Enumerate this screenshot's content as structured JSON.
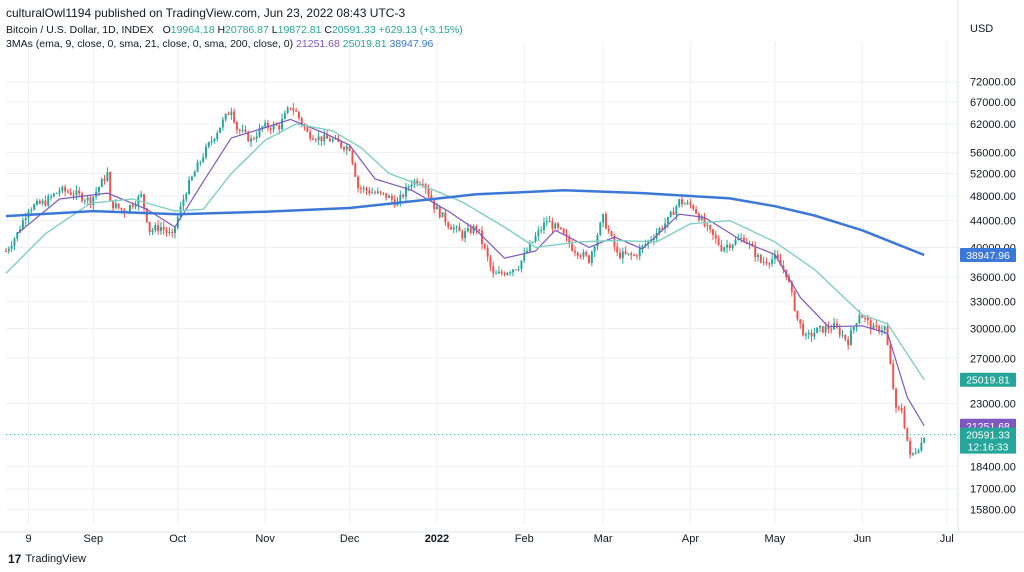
{
  "header": {
    "publish_line": "culturalOwl1194 published on TradingView.com, Jun 23, 2022 08:43 UTC-3",
    "symbol_line": "Bitcoin / U.S. Dollar, 1D, INDEX",
    "o_label": "O",
    "o_value": "19964.18",
    "h_label": "H",
    "h_value": "20786.87",
    "l_label": "L",
    "l_value": "19872.81",
    "c_label": "C",
    "c_value": "20591.33",
    "change": "+629.13 (+3.15%)",
    "ma_line": "3MAs (ema, 9, close, 0, sma, 21, close, 0, sma, 200, close, 0)",
    "ma_values": [
      "21251.68",
      "25019.81",
      "38947.96"
    ]
  },
  "footer": {
    "logo_text": "TradingView",
    "logo_mark": "17"
  },
  "colors": {
    "up": "#26a69a",
    "down": "#ef5350",
    "ema9": "#7e57c2",
    "sma21": "#7fcfc2",
    "sma200": "#3c78d8",
    "grid": "#eef0f3",
    "text": "#131722"
  },
  "chart_data": {
    "type": "candlestick",
    "currency_label": "USD",
    "ylim": [
      15000,
      80000
    ],
    "y_scale": "log",
    "y_ticks": [
      "72000.00",
      "67000.00",
      "62000.00",
      "56000.00",
      "52000.00",
      "48000.00",
      "44000.00",
      "40000.00",
      "36000.00",
      "33000.00",
      "30000.00",
      "27000.00",
      "23000.00",
      "18400.00",
      "17000.00",
      "15800.00"
    ],
    "x_ticks": [
      "9",
      "Sep",
      "Oct",
      "Nov",
      "Dec",
      "2022",
      "Feb",
      "Mar",
      "Apr",
      "May",
      "Jun",
      "Jul"
    ],
    "x_range": [
      "2021-08-01",
      "2022-07-05"
    ],
    "x_tick_dates": [
      "2021-08-09",
      "2021-09-01",
      "2021-10-01",
      "2021-11-01",
      "2021-12-01",
      "2022-01-01",
      "2022-02-01",
      "2022-03-01",
      "2022-04-01",
      "2022-05-01",
      "2022-06-01",
      "2022-07-01"
    ],
    "close_path": [
      [
        "2021-08-01",
        39500
      ],
      [
        "2021-08-05",
        42000
      ],
      [
        "2021-08-09",
        46000
      ],
      [
        "2021-08-15",
        47000
      ],
      [
        "2021-08-20",
        49000
      ],
      [
        "2021-08-25",
        48500
      ],
      [
        "2021-08-31",
        47200
      ],
      [
        "2021-09-06",
        52000
      ],
      [
        "2021-09-07",
        46800
      ],
      [
        "2021-09-12",
        45500
      ],
      [
        "2021-09-18",
        48000
      ],
      [
        "2021-09-21",
        42500
      ],
      [
        "2021-09-25",
        43000
      ],
      [
        "2021-09-29",
        41500
      ],
      [
        "2021-10-04",
        49000
      ],
      [
        "2021-10-10",
        55500
      ],
      [
        "2021-10-16",
        61500
      ],
      [
        "2021-10-20",
        65500
      ],
      [
        "2021-10-22",
        61000
      ],
      [
        "2021-10-27",
        58500
      ],
      [
        "2021-10-31",
        61300
      ],
      [
        "2021-11-06",
        61500
      ],
      [
        "2021-11-10",
        66000
      ],
      [
        "2021-11-12",
        64500
      ],
      [
        "2021-11-16",
        60000
      ],
      [
        "2021-11-20",
        59000
      ],
      [
        "2021-11-25",
        58500
      ],
      [
        "2021-11-28",
        57500
      ],
      [
        "2021-12-01",
        57000
      ],
      [
        "2021-12-04",
        49500
      ],
      [
        "2021-12-10",
        48500
      ],
      [
        "2021-12-14",
        48000
      ],
      [
        "2021-12-18",
        46800
      ],
      [
        "2021-12-23",
        50500
      ],
      [
        "2021-12-27",
        50800
      ],
      [
        "2021-12-31",
        46300
      ],
      [
        "2022-01-05",
        43500
      ],
      [
        "2022-01-10",
        41800
      ],
      [
        "2022-01-15",
        43000
      ],
      [
        "2022-01-21",
        36200
      ],
      [
        "2022-01-24",
        36500
      ],
      [
        "2022-01-30",
        37500
      ],
      [
        "2022-02-05",
        41500
      ],
      [
        "2022-02-09",
        44000
      ],
      [
        "2022-02-14",
        42200
      ],
      [
        "2022-02-18",
        40000
      ],
      [
        "2022-02-24",
        38300
      ],
      [
        "2022-03-01",
        44400
      ],
      [
        "2022-03-06",
        39000
      ],
      [
        "2022-03-12",
        38800
      ],
      [
        "2022-03-17",
        40900
      ],
      [
        "2022-03-24",
        44000
      ],
      [
        "2022-03-28",
        47100
      ],
      [
        "2022-04-02",
        46200
      ],
      [
        "2022-04-06",
        43200
      ],
      [
        "2022-04-12",
        40000
      ],
      [
        "2022-04-20",
        41400
      ],
      [
        "2022-04-26",
        38000
      ],
      [
        "2022-05-01",
        38500
      ],
      [
        "2022-05-05",
        36500
      ],
      [
        "2022-05-09",
        31000
      ],
      [
        "2022-05-12",
        29000
      ],
      [
        "2022-05-16",
        29800
      ],
      [
        "2022-05-22",
        30200
      ],
      [
        "2022-05-27",
        28700
      ],
      [
        "2022-05-31",
        31700
      ],
      [
        "2022-06-05",
        29900
      ],
      [
        "2022-06-09",
        30100
      ],
      [
        "2022-06-13",
        22400
      ],
      [
        "2022-06-15",
        22500
      ],
      [
        "2022-06-18",
        19000
      ],
      [
        "2022-06-22",
        20000
      ],
      [
        "2022-06-23",
        20591.33
      ]
    ],
    "series": [
      {
        "name": "ema 9",
        "last_label": "21251.68",
        "points": [
          [
            "2021-08-05",
            42000
          ],
          [
            "2021-08-20",
            47500
          ],
          [
            "2021-09-06",
            48500
          ],
          [
            "2021-09-20",
            45800
          ],
          [
            "2021-09-30",
            43000
          ],
          [
            "2021-10-10",
            50500
          ],
          [
            "2021-10-20",
            59000
          ],
          [
            "2021-10-31",
            61000
          ],
          [
            "2021-11-10",
            63000
          ],
          [
            "2021-11-22",
            60000
          ],
          [
            "2021-12-01",
            57500
          ],
          [
            "2021-12-10",
            51000
          ],
          [
            "2021-12-23",
            49000
          ],
          [
            "2022-01-05",
            45500
          ],
          [
            "2022-01-15",
            42500
          ],
          [
            "2022-01-25",
            38500
          ],
          [
            "2022-02-05",
            39500
          ],
          [
            "2022-02-12",
            42500
          ],
          [
            "2022-02-24",
            40000
          ],
          [
            "2022-03-05",
            41500
          ],
          [
            "2022-03-15",
            39800
          ],
          [
            "2022-03-28",
            45000
          ],
          [
            "2022-04-06",
            44500
          ],
          [
            "2022-04-20",
            40800
          ],
          [
            "2022-05-01",
            39000
          ],
          [
            "2022-05-10",
            33500
          ],
          [
            "2022-05-20",
            30200
          ],
          [
            "2022-06-01",
            30300
          ],
          [
            "2022-06-10",
            29500
          ],
          [
            "2022-06-17",
            23500
          ],
          [
            "2022-06-23",
            21251.68
          ]
        ]
      },
      {
        "name": "sma 21",
        "last_label": "25019.81",
        "points": [
          [
            "2021-08-01",
            36500
          ],
          [
            "2021-08-15",
            42000
          ],
          [
            "2021-08-31",
            46800
          ],
          [
            "2021-09-15",
            47500
          ],
          [
            "2021-09-30",
            45500
          ],
          [
            "2021-10-10",
            45800
          ],
          [
            "2021-10-20",
            52000
          ],
          [
            "2021-11-01",
            58500
          ],
          [
            "2021-11-12",
            62000
          ],
          [
            "2021-11-25",
            60500
          ],
          [
            "2021-12-05",
            57000
          ],
          [
            "2021-12-15",
            52000
          ],
          [
            "2021-12-31",
            49000
          ],
          [
            "2022-01-10",
            47000
          ],
          [
            "2022-01-25",
            43000
          ],
          [
            "2022-02-05",
            40000
          ],
          [
            "2022-02-20",
            40800
          ],
          [
            "2022-03-05",
            41000
          ],
          [
            "2022-03-20",
            40800
          ],
          [
            "2022-04-01",
            43500
          ],
          [
            "2022-04-15",
            44000
          ],
          [
            "2022-05-01",
            40800
          ],
          [
            "2022-05-15",
            37000
          ],
          [
            "2022-06-01",
            31500
          ],
          [
            "2022-06-10",
            30500
          ],
          [
            "2022-06-23",
            25019.81
          ]
        ]
      },
      {
        "name": "sma 200",
        "last_label": "38947.96",
        "points": [
          [
            "2021-08-01",
            44700
          ],
          [
            "2021-09-01",
            45500
          ],
          [
            "2021-10-01",
            45000
          ],
          [
            "2021-11-01",
            45400
          ],
          [
            "2021-12-01",
            46000
          ],
          [
            "2021-12-25",
            47200
          ],
          [
            "2022-01-15",
            48300
          ],
          [
            "2022-02-15",
            49000
          ],
          [
            "2022-03-15",
            48500
          ],
          [
            "2022-04-15",
            47600
          ],
          [
            "2022-05-01",
            46300
          ],
          [
            "2022-05-15",
            44800
          ],
          [
            "2022-06-01",
            42500
          ],
          [
            "2022-06-23",
            38947.96
          ]
        ]
      }
    ],
    "last_price": "20591.33",
    "countdown": "12:16:33"
  }
}
